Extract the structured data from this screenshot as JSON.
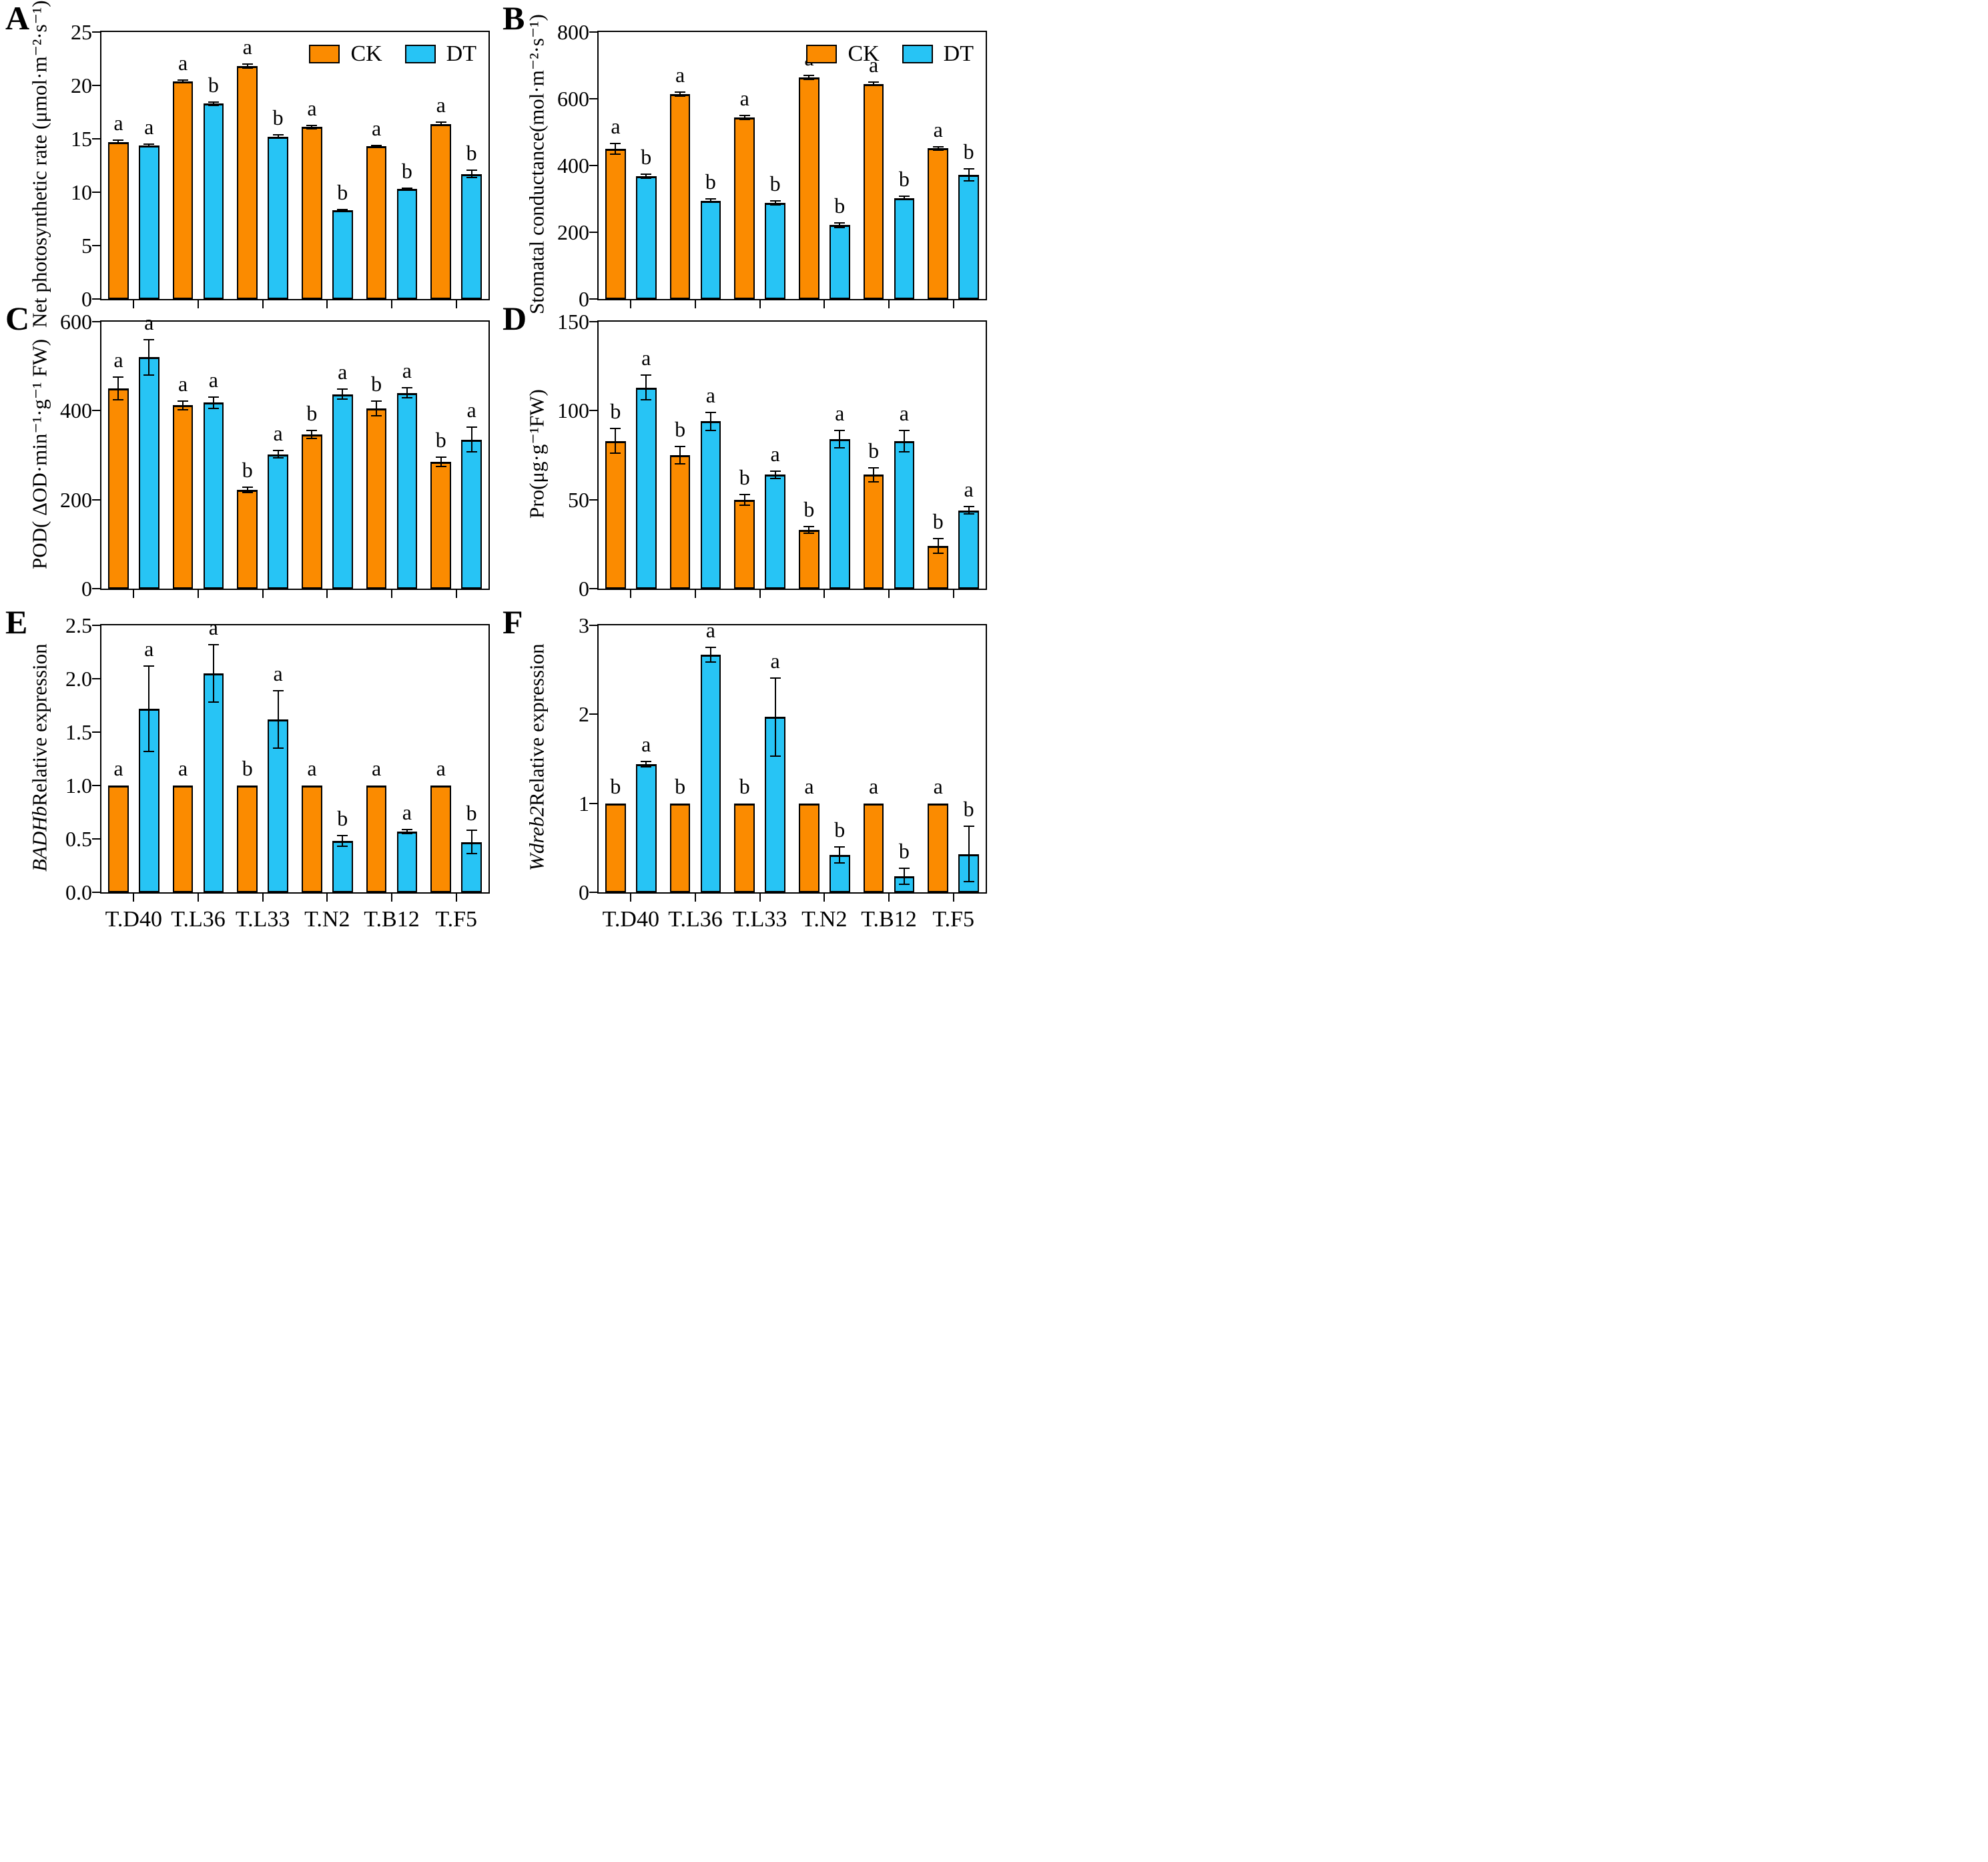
{
  "figure_title": "",
  "legend": {
    "ck_label": "CK",
    "dt_label": "DT"
  },
  "colors": {
    "ck": "#FB8B00",
    "dt": "#27C4F5",
    "axis": "#000000"
  },
  "chart_data": {
    "type": "bar",
    "layout": "2x3 multipanel grouped bars with error bars and significance letters",
    "categories": [
      "T.D40",
      "T.L36",
      "T.L33",
      "T.N2",
      "T.B12",
      "T.F5"
    ],
    "legend_entries": [
      "CK",
      "DT"
    ],
    "panels": [
      {
        "label": "A",
        "ylabel_italic": "",
        "ylabel": "Net photosynthetic rate (μmol·m⁻²·s⁻¹)",
        "ylim": [
          0,
          25
        ],
        "yticks": [
          "0",
          "5",
          "10",
          "15",
          "20",
          "25"
        ],
        "legend_visible": true,
        "show_xlabels": false,
        "series": [
          {
            "name": "CK",
            "values": [
              14.7,
              20.4,
              21.8,
              16.1,
              14.3,
              16.4
            ],
            "errors": [
              0.15,
              0.1,
              0.2,
              0.15,
              0.1,
              0.15
            ],
            "letters": [
              "a",
              "a",
              "a",
              "a",
              "a",
              "a"
            ]
          },
          {
            "name": "DT",
            "values": [
              14.4,
              18.3,
              15.2,
              8.3,
              10.3,
              11.7
            ],
            "errors": [
              0.1,
              0.15,
              0.15,
              0.1,
              0.1,
              0.35
            ],
            "letters": [
              "a",
              "b",
              "b",
              "b",
              "b",
              "b"
            ]
          }
        ]
      },
      {
        "label": "B",
        "ylabel_italic": "",
        "ylabel": "Stomatal conductance(mol·m⁻²·s⁻¹)",
        "ylim": [
          0,
          800
        ],
        "yticks": [
          "0",
          "200",
          "400",
          "600",
          "800"
        ],
        "legend_visible": true,
        "show_xlabels": false,
        "series": [
          {
            "name": "CK",
            "values": [
              450,
              615,
              545,
              665,
              645,
              452
            ],
            "errors": [
              16,
              6,
              6,
              6,
              5,
              5
            ],
            "letters": [
              "a",
              "a",
              "a",
              "a",
              "a",
              "a"
            ]
          },
          {
            "name": "DT",
            "values": [
              368,
              295,
              288,
              222,
              303,
              372
            ],
            "errors": [
              6,
              5,
              6,
              7,
              5,
              18
            ],
            "letters": [
              "b",
              "b",
              "b",
              "b",
              "b",
              "b"
            ]
          }
        ]
      },
      {
        "label": "C",
        "ylabel_italic": "",
        "ylabel": "POD( ΔOD·min⁻¹·g⁻¹ FW)",
        "ylim": [
          0,
          600
        ],
        "yticks": [
          "0",
          "200",
          "400",
          "600"
        ],
        "legend_visible": false,
        "show_xlabels": false,
        "series": [
          {
            "name": "CK",
            "values": [
              450,
              412,
              222,
              347,
              405,
              285
            ],
            "errors": [
              26,
              10,
              6,
              9,
              16,
              10
            ],
            "letters": [
              "a",
              "a",
              "b",
              "b",
              "b",
              "b"
            ]
          },
          {
            "name": "DT",
            "values": [
              520,
              418,
              302,
              437,
              440,
              335
            ],
            "errors": [
              40,
              13,
              8,
              11,
              11,
              28
            ],
            "letters": [
              "a",
              "a",
              "a",
              "a",
              "a",
              "a"
            ]
          }
        ]
      },
      {
        "label": "D",
        "ylabel_italic": "",
        "ylabel": "Pro(μg·g⁻¹FW)",
        "ylim": [
          0,
          150
        ],
        "yticks": [
          "0",
          "50",
          "100",
          "150"
        ],
        "legend_visible": false,
        "show_xlabels": false,
        "series": [
          {
            "name": "CK",
            "values": [
              83,
              75,
              50,
              33,
              64,
              24
            ],
            "errors": [
              7,
              5,
              3,
              2,
              4,
              4
            ],
            "letters": [
              "b",
              "b",
              "b",
              "b",
              "b",
              "b"
            ]
          },
          {
            "name": "DT",
            "values": [
              113,
              94,
              64,
              84,
              83,
              44
            ],
            "errors": [
              7,
              5,
              2,
              5,
              6,
              2
            ],
            "letters": [
              "a",
              "a",
              "a",
              "a",
              "a",
              "a"
            ]
          }
        ]
      },
      {
        "label": "E",
        "ylabel_italic": "BADHb",
        "ylabel": "Relative expression",
        "ylim": [
          0,
          2.5
        ],
        "yticks": [
          "0.0",
          "0.5",
          "1.0",
          "1.5",
          "2.0",
          "2.5"
        ],
        "legend_visible": false,
        "show_xlabels": true,
        "series": [
          {
            "name": "CK",
            "values": [
              1.0,
              1.0,
              1.0,
              1.0,
              1.0,
              1.0
            ],
            "errors": [
              0,
              0,
              0,
              0,
              0,
              0
            ],
            "letters": [
              "a",
              "a",
              "b",
              "a",
              "a",
              "a"
            ]
          },
          {
            "name": "DT",
            "values": [
              1.72,
              2.05,
              1.62,
              0.48,
              0.57,
              0.47
            ],
            "errors": [
              0.4,
              0.27,
              0.27,
              0.05,
              0.02,
              0.11
            ],
            "letters": [
              "a",
              "a",
              "a",
              "b",
              "a",
              "b"
            ]
          }
        ]
      },
      {
        "label": "F",
        "ylabel_italic": "Wdreb2",
        "ylabel": "Relative expression",
        "ylim": [
          0,
          3
        ],
        "yticks": [
          "0",
          "1",
          "2",
          "3"
        ],
        "legend_visible": false,
        "show_xlabels": true,
        "series": [
          {
            "name": "CK",
            "values": [
              1.0,
              1.0,
              1.0,
              1.0,
              1.0,
              1.0
            ],
            "errors": [
              0,
              0,
              0,
              0,
              0,
              0
            ],
            "letters": [
              "b",
              "b",
              "b",
              "a",
              "a",
              "a"
            ]
          },
          {
            "name": "DT",
            "values": [
              1.44,
              2.67,
              1.97,
              0.42,
              0.18,
              0.43
            ],
            "errors": [
              0.03,
              0.08,
              0.44,
              0.09,
              0.09,
              0.31
            ],
            "letters": [
              "a",
              "a",
              "a",
              "b",
              "b",
              "b"
            ]
          }
        ]
      }
    ]
  }
}
